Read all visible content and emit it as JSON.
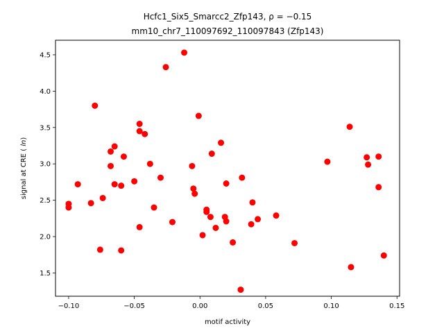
{
  "chart_data": {
    "type": "scatter",
    "title_line1": "Hcfc1_Six5_Smarcc2_Zfp143, ρ = −0.15",
    "title_line2": "mm10_chr7_110097692_110097843 (Zfp143)",
    "xlabel": "motif activity",
    "ylabel": "signal at CRE (ln)",
    "xlim": [
      -0.11,
      0.152
    ],
    "ylim": [
      1.18,
      4.7
    ],
    "xticks": [
      -0.1,
      -0.05,
      0.0,
      0.05,
      0.1,
      0.15
    ],
    "xtick_labels": [
      "−0.10",
      "−0.05",
      "0.00",
      "0.05",
      "0.10",
      "0.15"
    ],
    "yticks": [
      1.5,
      2.0,
      2.5,
      3.0,
      3.5,
      4.0,
      4.5
    ],
    "ytick_labels": [
      "1.5",
      "2.0",
      "2.5",
      "3.0",
      "3.5",
      "4.0",
      "4.5"
    ],
    "grid": false,
    "marker_color": "#ff0000",
    "points": [
      {
        "x": -0.1,
        "y": 2.45
      },
      {
        "x": -0.1,
        "y": 2.4
      },
      {
        "x": -0.093,
        "y": 2.72
      },
      {
        "x": -0.083,
        "y": 2.46
      },
      {
        "x": -0.08,
        "y": 3.8
      },
      {
        "x": -0.076,
        "y": 1.82
      },
      {
        "x": -0.074,
        "y": 2.53
      },
      {
        "x": -0.068,
        "y": 3.17
      },
      {
        "x": -0.068,
        "y": 2.97
      },
      {
        "x": -0.065,
        "y": 3.24
      },
      {
        "x": -0.065,
        "y": 2.72
      },
      {
        "x": -0.06,
        "y": 2.7
      },
      {
        "x": -0.06,
        "y": 1.81
      },
      {
        "x": -0.058,
        "y": 3.1
      },
      {
        "x": -0.05,
        "y": 2.76
      },
      {
        "x": -0.046,
        "y": 3.55
      },
      {
        "x": -0.046,
        "y": 3.45
      },
      {
        "x": -0.046,
        "y": 2.13
      },
      {
        "x": -0.042,
        "y": 3.41
      },
      {
        "x": -0.038,
        "y": 3.0
      },
      {
        "x": -0.035,
        "y": 2.4
      },
      {
        "x": -0.03,
        "y": 2.81
      },
      {
        "x": -0.026,
        "y": 4.33
      },
      {
        "x": -0.021,
        "y": 2.2
      },
      {
        "x": -0.012,
        "y": 4.53
      },
      {
        "x": -0.006,
        "y": 2.97
      },
      {
        "x": -0.005,
        "y": 2.66
      },
      {
        "x": -0.004,
        "y": 2.59
      },
      {
        "x": -0.001,
        "y": 3.66
      },
      {
        "x": 0.002,
        "y": 2.02
      },
      {
        "x": 0.005,
        "y": 2.37
      },
      {
        "x": 0.005,
        "y": 2.34
      },
      {
        "x": 0.008,
        "y": 2.27
      },
      {
        "x": 0.009,
        "y": 3.14
      },
      {
        "x": 0.012,
        "y": 2.12
      },
      {
        "x": 0.016,
        "y": 3.29
      },
      {
        "x": 0.019,
        "y": 2.27
      },
      {
        "x": 0.02,
        "y": 2.73
      },
      {
        "x": 0.02,
        "y": 2.21
      },
      {
        "x": 0.025,
        "y": 1.92
      },
      {
        "x": 0.031,
        "y": 1.27
      },
      {
        "x": 0.032,
        "y": 2.81
      },
      {
        "x": 0.039,
        "y": 2.17
      },
      {
        "x": 0.04,
        "y": 2.47
      },
      {
        "x": 0.044,
        "y": 2.24
      },
      {
        "x": 0.058,
        "y": 2.29
      },
      {
        "x": 0.072,
        "y": 1.91
      },
      {
        "x": 0.097,
        "y": 3.03
      },
      {
        "x": 0.114,
        "y": 3.51
      },
      {
        "x": 0.115,
        "y": 1.58
      },
      {
        "x": 0.127,
        "y": 3.09
      },
      {
        "x": 0.128,
        "y": 2.99
      },
      {
        "x": 0.136,
        "y": 3.1
      },
      {
        "x": 0.136,
        "y": 2.68
      },
      {
        "x": 0.14,
        "y": 1.74
      }
    ]
  }
}
